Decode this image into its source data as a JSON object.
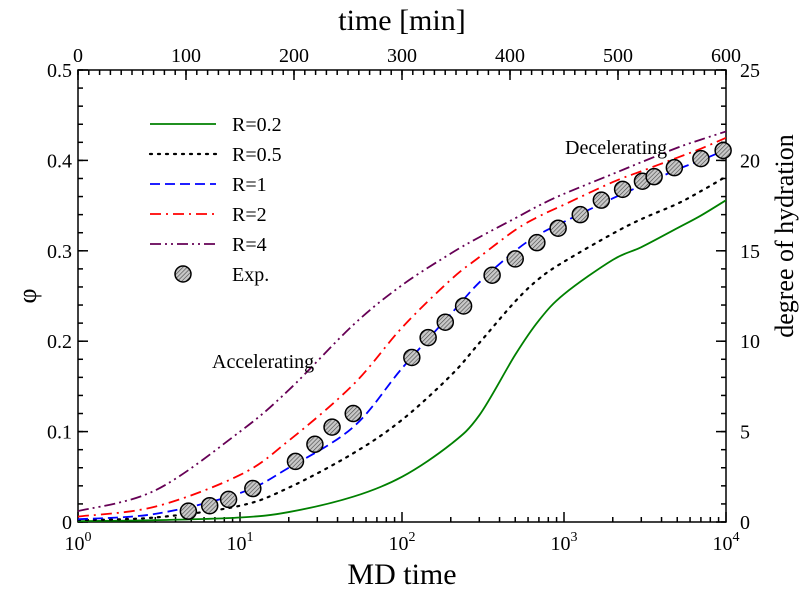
{
  "chart_data": {
    "type": "line",
    "xlabel": "MD time",
    "ylabel": "φ",
    "x_scale": "log",
    "xlim": [
      1,
      10000
    ],
    "ylim": [
      0,
      0.5
    ],
    "x_ticks": [
      1,
      10,
      100,
      1000,
      10000
    ],
    "x_tick_labels": [
      {
        "base": "10",
        "exp": "0"
      },
      {
        "base": "10",
        "exp": "1"
      },
      {
        "base": "10",
        "exp": "2"
      },
      {
        "base": "10",
        "exp": "3"
      },
      {
        "base": "10",
        "exp": "4"
      }
    ],
    "y_ticks": [
      0,
      0.1,
      0.2,
      0.3,
      0.4,
      0.5
    ],
    "y_tick_labels": [
      "0",
      "0.1",
      "0.2",
      "0.3",
      "0.4",
      "0.5"
    ],
    "top_axis": {
      "label": "time [min]",
      "range": [
        0,
        600
      ],
      "ticks": [
        0,
        100,
        200,
        300,
        400,
        500,
        600
      ],
      "tick_labels": [
        "0",
        "100",
        "200",
        "300",
        "400",
        "500",
        "600"
      ]
    },
    "right_axis": {
      "label": "degree of hydration",
      "range": [
        0,
        25
      ],
      "ticks": [
        0,
        5,
        10,
        15,
        20,
        25
      ],
      "tick_labels": [
        "0",
        "5",
        "10",
        "15",
        "20",
        "25"
      ]
    },
    "annotations": [
      "Accelerating",
      "Decelerating"
    ],
    "legend_position": "upper-left",
    "series": [
      {
        "name": "R=0.2",
        "color": "#008000",
        "style": "solid",
        "x": [
          1,
          3,
          10,
          20,
          50,
          100,
          200,
          300,
          500,
          700,
          1000,
          2000,
          3000,
          5000,
          7000,
          10000
        ],
        "y": [
          0.001,
          0.002,
          0.005,
          0.011,
          0.028,
          0.05,
          0.086,
          0.118,
          0.185,
          0.223,
          0.252,
          0.29,
          0.304,
          0.325,
          0.339,
          0.356
        ]
      },
      {
        "name": "R=0.5",
        "color": "#000000",
        "style": "dotted",
        "x": [
          1,
          3,
          10,
          20,
          50,
          100,
          200,
          300,
          500,
          700,
          1000,
          2000,
          3000,
          5000,
          7000,
          10000
        ],
        "y": [
          0.002,
          0.005,
          0.018,
          0.038,
          0.076,
          0.113,
          0.162,
          0.198,
          0.244,
          0.269,
          0.288,
          0.319,
          0.335,
          0.352,
          0.366,
          0.382
        ]
      },
      {
        "name": "R=1",
        "color": "#0000ff",
        "style": "dashed",
        "x": [
          1,
          3,
          10,
          20,
          50,
          100,
          200,
          300,
          500,
          700,
          1000,
          2000,
          3000,
          5000,
          7000,
          10000
        ],
        "y": [
          0.003,
          0.009,
          0.032,
          0.06,
          0.105,
          0.17,
          0.23,
          0.265,
          0.3,
          0.318,
          0.332,
          0.358,
          0.372,
          0.39,
          0.4,
          0.412
        ]
      },
      {
        "name": "R=2",
        "color": "#ff0000",
        "style": "dashdot",
        "x": [
          1,
          3,
          10,
          20,
          50,
          100,
          200,
          300,
          500,
          700,
          1000,
          2000,
          3000,
          5000,
          7000,
          10000
        ],
        "y": [
          0.006,
          0.017,
          0.052,
          0.09,
          0.152,
          0.215,
          0.268,
          0.293,
          0.323,
          0.338,
          0.351,
          0.376,
          0.388,
          0.403,
          0.413,
          0.425
        ]
      },
      {
        "name": "R=4",
        "color": "#660055",
        "style": "dashdotdot",
        "x": [
          1,
          3,
          10,
          20,
          50,
          100,
          200,
          300,
          500,
          700,
          1000,
          2000,
          3000,
          5000,
          7000,
          10000
        ],
        "y": [
          0.012,
          0.035,
          0.1,
          0.146,
          0.218,
          0.262,
          0.297,
          0.315,
          0.336,
          0.35,
          0.363,
          0.385,
          0.398,
          0.414,
          0.423,
          0.432
        ]
      },
      {
        "name": "Exp.",
        "color": "#999999",
        "style": "markers",
        "x": [
          4.8,
          6.5,
          8.5,
          12,
          22,
          29,
          37,
          50,
          115,
          145,
          185,
          240,
          360,
          500,
          680,
          920,
          1260,
          1700,
          2300,
          3050,
          3600,
          4800,
          7000,
          9600
        ],
        "y": [
          0.012,
          0.018,
          0.025,
          0.037,
          0.067,
          0.086,
          0.105,
          0.12,
          0.182,
          0.204,
          0.221,
          0.239,
          0.273,
          0.291,
          0.309,
          0.325,
          0.34,
          0.356,
          0.368,
          0.377,
          0.382,
          0.392,
          0.402,
          0.411
        ]
      }
    ]
  }
}
